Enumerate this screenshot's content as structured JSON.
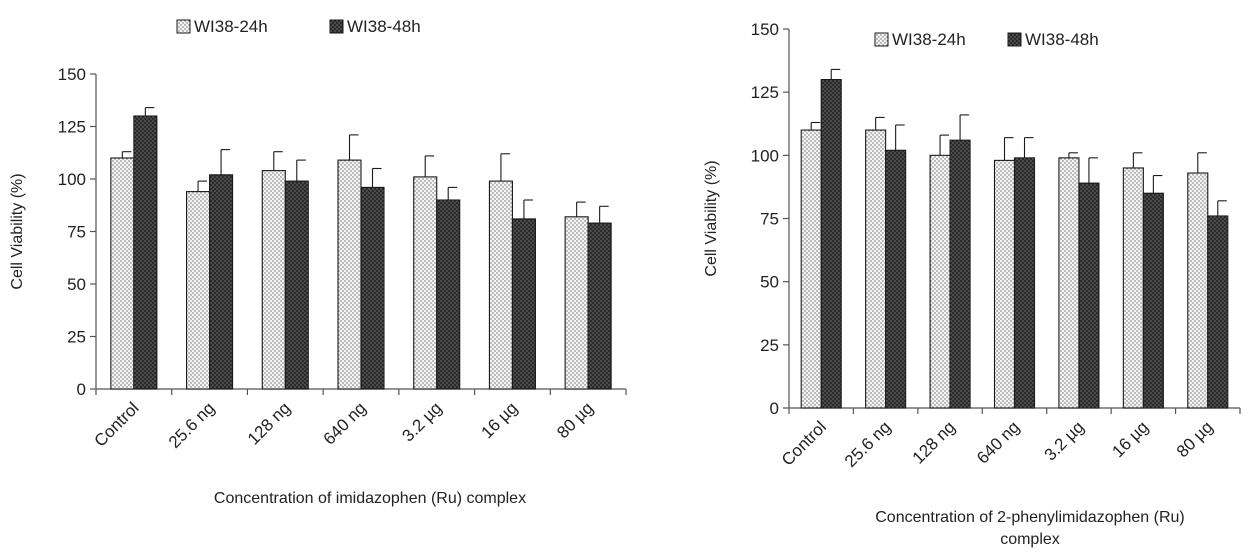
{
  "chart_data": [
    {
      "type": "bar",
      "title": "",
      "categories": [
        "Control",
        "25.6 ng",
        "128 ng",
        "640 ng",
        "3.2 µg",
        "16 µg",
        "80 µg"
      ],
      "series": [
        {
          "name": "WI38-24h",
          "values": [
            110,
            94,
            104,
            109,
            101,
            99,
            82
          ],
          "errors": [
            3,
            5,
            9,
            12,
            10,
            13,
            7
          ],
          "pattern": "dots"
        },
        {
          "name": "WI38-48h",
          "values": [
            130,
            102,
            99,
            96,
            90,
            81,
            79
          ],
          "errors": [
            4,
            12,
            10,
            9,
            6,
            9,
            8
          ],
          "pattern": "dark"
        }
      ],
      "xlabel": [
        "Concentration of imidazophen (Ru) complex"
      ],
      "ylabel": "Cell Viability (%)",
      "ylim": [
        0,
        150
      ],
      "yticks": [
        0,
        25,
        50,
        75,
        100,
        125,
        150
      ],
      "grid": false,
      "legend": "top"
    },
    {
      "type": "bar",
      "title": "",
      "categories": [
        "Control",
        "25.6 ng",
        "128 ng",
        "640 ng",
        "3.2 µg",
        "16 µg",
        "80 µg"
      ],
      "series": [
        {
          "name": "WI38-24h",
          "values": [
            110,
            110,
            100,
            98,
            99,
            95,
            93
          ],
          "errors": [
            3,
            5,
            8,
            9,
            2,
            6,
            8
          ],
          "pattern": "dots"
        },
        {
          "name": "WI38-48h",
          "values": [
            130,
            102,
            106,
            99,
            89,
            85,
            76
          ],
          "errors": [
            4,
            10,
            10,
            8,
            10,
            7,
            6
          ],
          "pattern": "dark"
        }
      ],
      "xlabel": [
        "Concentration of 2-phenylimidazophen (Ru)",
        "complex"
      ],
      "ylabel": "Cell Viability (%)",
      "ylim": [
        0,
        150
      ],
      "yticks": [
        0,
        25,
        50,
        75,
        100,
        125,
        150
      ],
      "grid": false,
      "legend": "top"
    }
  ]
}
